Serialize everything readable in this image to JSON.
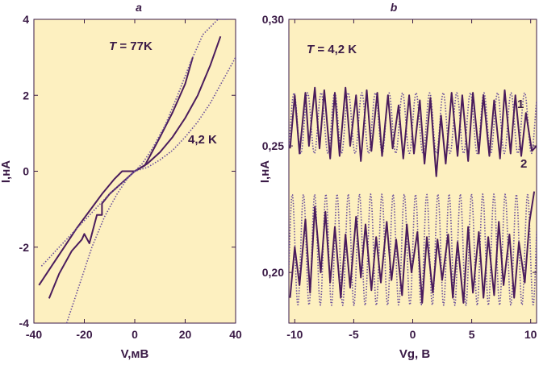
{
  "colors": {
    "plot_background": "#fdf0c0",
    "curve": "#4a1c5c",
    "dotted_curve": "#6a4f9a",
    "text": "#3a1a46"
  },
  "chart_data": [
    {
      "panel_label": "a",
      "type": "line",
      "xlabel": "V,мВ",
      "ylabel": "I,нА",
      "xlim": [
        -40,
        40
      ],
      "ylim": [
        -4,
        4
      ],
      "xticks": [
        "-40",
        "-20",
        "0",
        "20",
        "40"
      ],
      "yticks": [
        "4",
        "2",
        "0",
        "-2",
        "-4"
      ],
      "annotations": {
        "t77_prefix": "T",
        "t77_value": " = 77K",
        "t42": "4,2 K"
      },
      "series": [
        {
          "style": "solid",
          "x": [
            -38,
            -33,
            -28,
            -23,
            -18,
            -13,
            -8,
            -5,
            -4,
            0,
            4,
            6,
            10,
            15,
            20,
            23
          ],
          "y": [
            -3.0,
            -2.5,
            -2.0,
            -1.5,
            -1.05,
            -0.6,
            -0.2,
            0.0,
            0.0,
            0.0,
            0.15,
            0.4,
            0.9,
            1.55,
            2.3,
            3.0
          ]
        },
        {
          "style": "solid",
          "x": [
            -34,
            -30,
            -25,
            -21,
            -20,
            -18,
            -16,
            -15,
            -13,
            -13,
            -10,
            -5,
            0,
            5,
            10,
            15,
            20,
            25,
            30,
            34
          ],
          "y": [
            -3.35,
            -2.7,
            -2.1,
            -1.8,
            -1.65,
            -1.9,
            -1.4,
            -1.15,
            -1.15,
            -0.85,
            -0.6,
            -0.3,
            0.0,
            0.2,
            0.5,
            0.9,
            1.4,
            2.0,
            2.8,
            3.55
          ]
        },
        {
          "style": "dotted",
          "x": [
            -27,
            -22,
            -17,
            -12,
            -7,
            -3,
            0,
            3,
            7,
            12,
            17,
            22,
            27,
            33,
            37
          ],
          "y": [
            -4.0,
            -3.0,
            -2.0,
            -1.2,
            -0.6,
            -0.2,
            0.0,
            0.2,
            0.6,
            1.2,
            2.0,
            2.85,
            3.6,
            4.0,
            4.0
          ]
        },
        {
          "style": "dotted",
          "x": [
            -37,
            -30,
            -25,
            -20,
            -15,
            -10,
            -5,
            0,
            5,
            10,
            15,
            20,
            25,
            30,
            35,
            40
          ],
          "y": [
            -2.5,
            -2.0,
            -1.65,
            -1.3,
            -0.95,
            -0.6,
            -0.3,
            0.0,
            0.1,
            0.3,
            0.55,
            0.9,
            1.3,
            1.8,
            2.4,
            3.0
          ]
        }
      ]
    },
    {
      "panel_label": "b",
      "type": "line",
      "xlabel": "Vg, В",
      "ylabel": "I,нА",
      "xlim": [
        -10.5,
        10.5
      ],
      "ylim": [
        0.18,
        0.3
      ],
      "xticks": [
        "-10",
        "-5",
        "0",
        "5",
        "10"
      ],
      "yticks": [
        "0,30",
        "0,25",
        "0,20"
      ],
      "annotations": {
        "t_prefix": "T",
        "t_value": " = 4,2 K",
        "curve1": "1",
        "curve2": "2"
      },
      "series": [
        {
          "name": "1",
          "style": "dotted",
          "baseline": 0.259,
          "amplitude": 0.012,
          "period": 1.15,
          "x_range": [
            -10.5,
            10.5
          ]
        },
        {
          "name": "1",
          "style": "solid",
          "x": [
            -10.4,
            -10.0,
            -9.6,
            -9.1,
            -8.8,
            -8.3,
            -7.9,
            -7.5,
            -7.0,
            -6.6,
            -6.2,
            -5.7,
            -5.3,
            -4.8,
            -4.4,
            -3.9,
            -3.5,
            -3.0,
            -2.6,
            -2.1,
            -1.7,
            -1.2,
            -0.8,
            -0.3,
            0.1,
            0.6,
            1.0,
            1.5,
            2.0,
            2.4,
            2.8,
            3.3,
            3.8,
            4.2,
            4.7,
            5.1,
            5.6,
            6.0,
            6.5,
            6.9,
            7.4,
            7.8,
            8.3,
            8.7,
            9.2,
            9.6,
            10.1,
            10.5
          ],
          "y": [
            0.249,
            0.27,
            0.247,
            0.271,
            0.25,
            0.273,
            0.249,
            0.272,
            0.245,
            0.271,
            0.246,
            0.273,
            0.25,
            0.27,
            0.244,
            0.272,
            0.248,
            0.271,
            0.246,
            0.27,
            0.249,
            0.266,
            0.245,
            0.27,
            0.247,
            0.268,
            0.243,
            0.269,
            0.238,
            0.262,
            0.243,
            0.271,
            0.246,
            0.27,
            0.244,
            0.271,
            0.247,
            0.27,
            0.246,
            0.268,
            0.245,
            0.272,
            0.247,
            0.27,
            0.246,
            0.263,
            0.248,
            0.25
          ]
        },
        {
          "name": "2",
          "style": "dotted",
          "baseline": 0.209,
          "amplitude": 0.022,
          "period": 0.95,
          "x_range": [
            -10.5,
            10.5
          ]
        },
        {
          "name": "2",
          "style": "solid",
          "x": [
            -10.4,
            -10.0,
            -9.6,
            -9.1,
            -8.7,
            -8.3,
            -7.8,
            -7.4,
            -7.0,
            -6.6,
            -6.1,
            -5.7,
            -5.3,
            -4.8,
            -4.4,
            -4.0,
            -3.5,
            -3.1,
            -2.7,
            -2.2,
            -1.8,
            -1.4,
            -0.9,
            -0.5,
            -0.1,
            0.4,
            0.8,
            1.2,
            1.7,
            2.1,
            2.5,
            3.0,
            3.4,
            3.8,
            4.3,
            4.7,
            5.1,
            5.6,
            6.0,
            6.4,
            6.9,
            7.3,
            7.7,
            8.2,
            8.6,
            9.0,
            9.5,
            9.9,
            10.3
          ],
          "y": [
            0.19,
            0.21,
            0.195,
            0.221,
            0.192,
            0.226,
            0.2,
            0.224,
            0.196,
            0.218,
            0.19,
            0.215,
            0.194,
            0.222,
            0.198,
            0.219,
            0.193,
            0.214,
            0.196,
            0.22,
            0.197,
            0.213,
            0.191,
            0.219,
            0.2,
            0.216,
            0.188,
            0.214,
            0.192,
            0.213,
            0.197,
            0.215,
            0.19,
            0.212,
            0.188,
            0.218,
            0.192,
            0.216,
            0.19,
            0.214,
            0.191,
            0.22,
            0.195,
            0.215,
            0.19,
            0.212,
            0.196,
            0.22,
            0.232
          ]
        }
      ]
    }
  ]
}
